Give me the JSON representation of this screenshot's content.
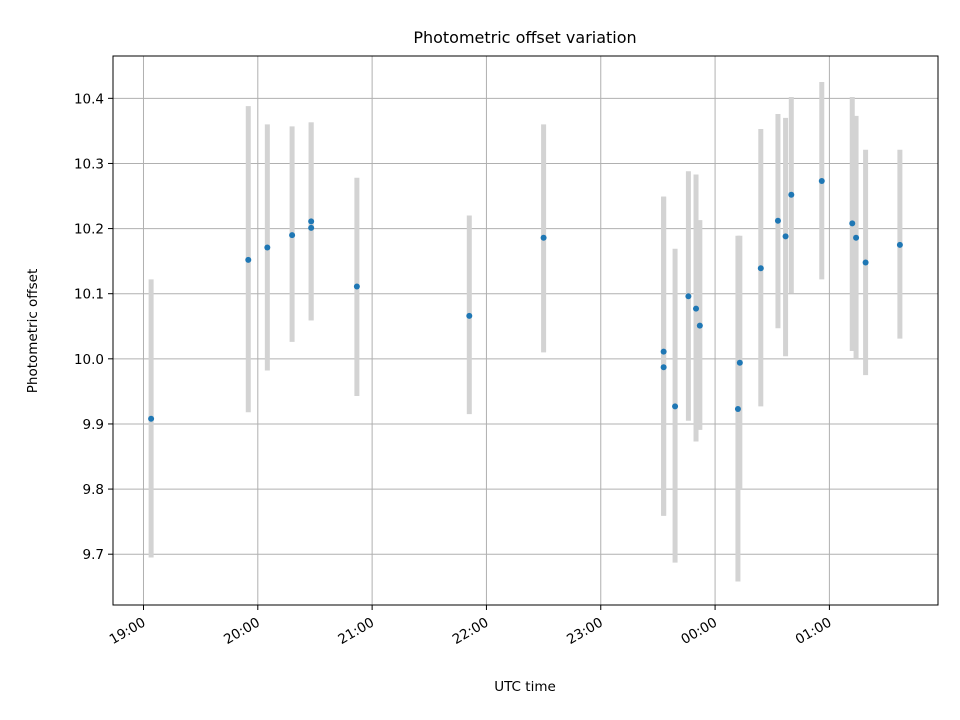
{
  "chart_data": {
    "type": "scatter",
    "title": "Photometric offset variation",
    "xlabel": "UTC time",
    "ylabel": "Photometric offset",
    "x_tick_labels": [
      "19:00",
      "20:00",
      "21:00",
      "22:00",
      "23:00",
      "00:00",
      "01:00"
    ],
    "x_ticks": [
      "19:00",
      "20:00",
      "21:00",
      "22:00",
      "23:00",
      "00:00",
      "01:00"
    ],
    "xlim": [
      "18:44",
      "01:57"
    ],
    "y_ticks": [
      9.7,
      9.8,
      9.9,
      10.0,
      10.1,
      10.2,
      10.3,
      10.4
    ],
    "y_tick_labels": [
      "9.7",
      "9.8",
      "9.9",
      "10.0",
      "10.1",
      "10.2",
      "10.3",
      "10.4"
    ],
    "ylim": [
      9.622,
      10.465
    ],
    "grid": true,
    "marker_color": "#1f77b4",
    "errorbar_color": "#d3d3d3",
    "points": [
      {
        "x": "19:04",
        "y": 9.908,
        "ylow": 9.695,
        "yhigh": 10.122
      },
      {
        "x": "19:55",
        "y": 10.152,
        "ylow": 9.918,
        "yhigh": 10.388
      },
      {
        "x": "20:05",
        "y": 10.171,
        "ylow": 9.982,
        "yhigh": 10.36
      },
      {
        "x": "20:18",
        "y": 10.19,
        "ylow": 10.026,
        "yhigh": 10.357
      },
      {
        "x": "20:28",
        "y": 10.211,
        "ylow": 10.059,
        "yhigh": 10.363
      },
      {
        "x": "20:28",
        "y": 10.201,
        "ylow": 10.059,
        "yhigh": 10.363
      },
      {
        "x": "20:52",
        "y": 10.111,
        "ylow": 9.943,
        "yhigh": 10.278
      },
      {
        "x": "21:51",
        "y": 10.066,
        "ylow": 9.915,
        "yhigh": 10.22
      },
      {
        "x": "22:30",
        "y": 10.186,
        "ylow": 10.01,
        "yhigh": 10.36
      },
      {
        "x": "23:33",
        "y": 10.011,
        "ylow": 9.759,
        "yhigh": 10.249
      },
      {
        "x": "23:33",
        "y": 9.987,
        "ylow": 9.759,
        "yhigh": 10.249
      },
      {
        "x": "23:39",
        "y": 9.927,
        "ylow": 9.687,
        "yhigh": 10.169
      },
      {
        "x": "23:46",
        "y": 10.096,
        "ylow": 9.905,
        "yhigh": 10.288
      },
      {
        "x": "23:50",
        "y": 10.077,
        "ylow": 9.873,
        "yhigh": 10.283
      },
      {
        "x": "23:52",
        "y": 10.051,
        "ylow": 9.891,
        "yhigh": 10.213
      },
      {
        "x": "00:12",
        "y": 9.923,
        "ylow": 9.658,
        "yhigh": 10.189
      },
      {
        "x": "00:13",
        "y": 9.994,
        "ylow": 9.8,
        "yhigh": 10.189
      },
      {
        "x": "00:24",
        "y": 10.139,
        "ylow": 9.927,
        "yhigh": 10.353
      },
      {
        "x": "00:33",
        "y": 10.212,
        "ylow": 10.047,
        "yhigh": 10.376
      },
      {
        "x": "00:37",
        "y": 10.188,
        "ylow": 10.004,
        "yhigh": 10.37
      },
      {
        "x": "00:40",
        "y": 10.252,
        "ylow": 10.101,
        "yhigh": 10.402
      },
      {
        "x": "00:56",
        "y": 10.273,
        "ylow": 10.122,
        "yhigh": 10.425
      },
      {
        "x": "01:12",
        "y": 10.208,
        "ylow": 10.012,
        "yhigh": 10.402
      },
      {
        "x": "01:14",
        "y": 10.186,
        "ylow": 10.0,
        "yhigh": 10.373
      },
      {
        "x": "01:19",
        "y": 10.148,
        "ylow": 9.975,
        "yhigh": 10.321
      },
      {
        "x": "01:37",
        "y": 10.175,
        "ylow": 10.031,
        "yhigh": 10.321
      }
    ]
  }
}
